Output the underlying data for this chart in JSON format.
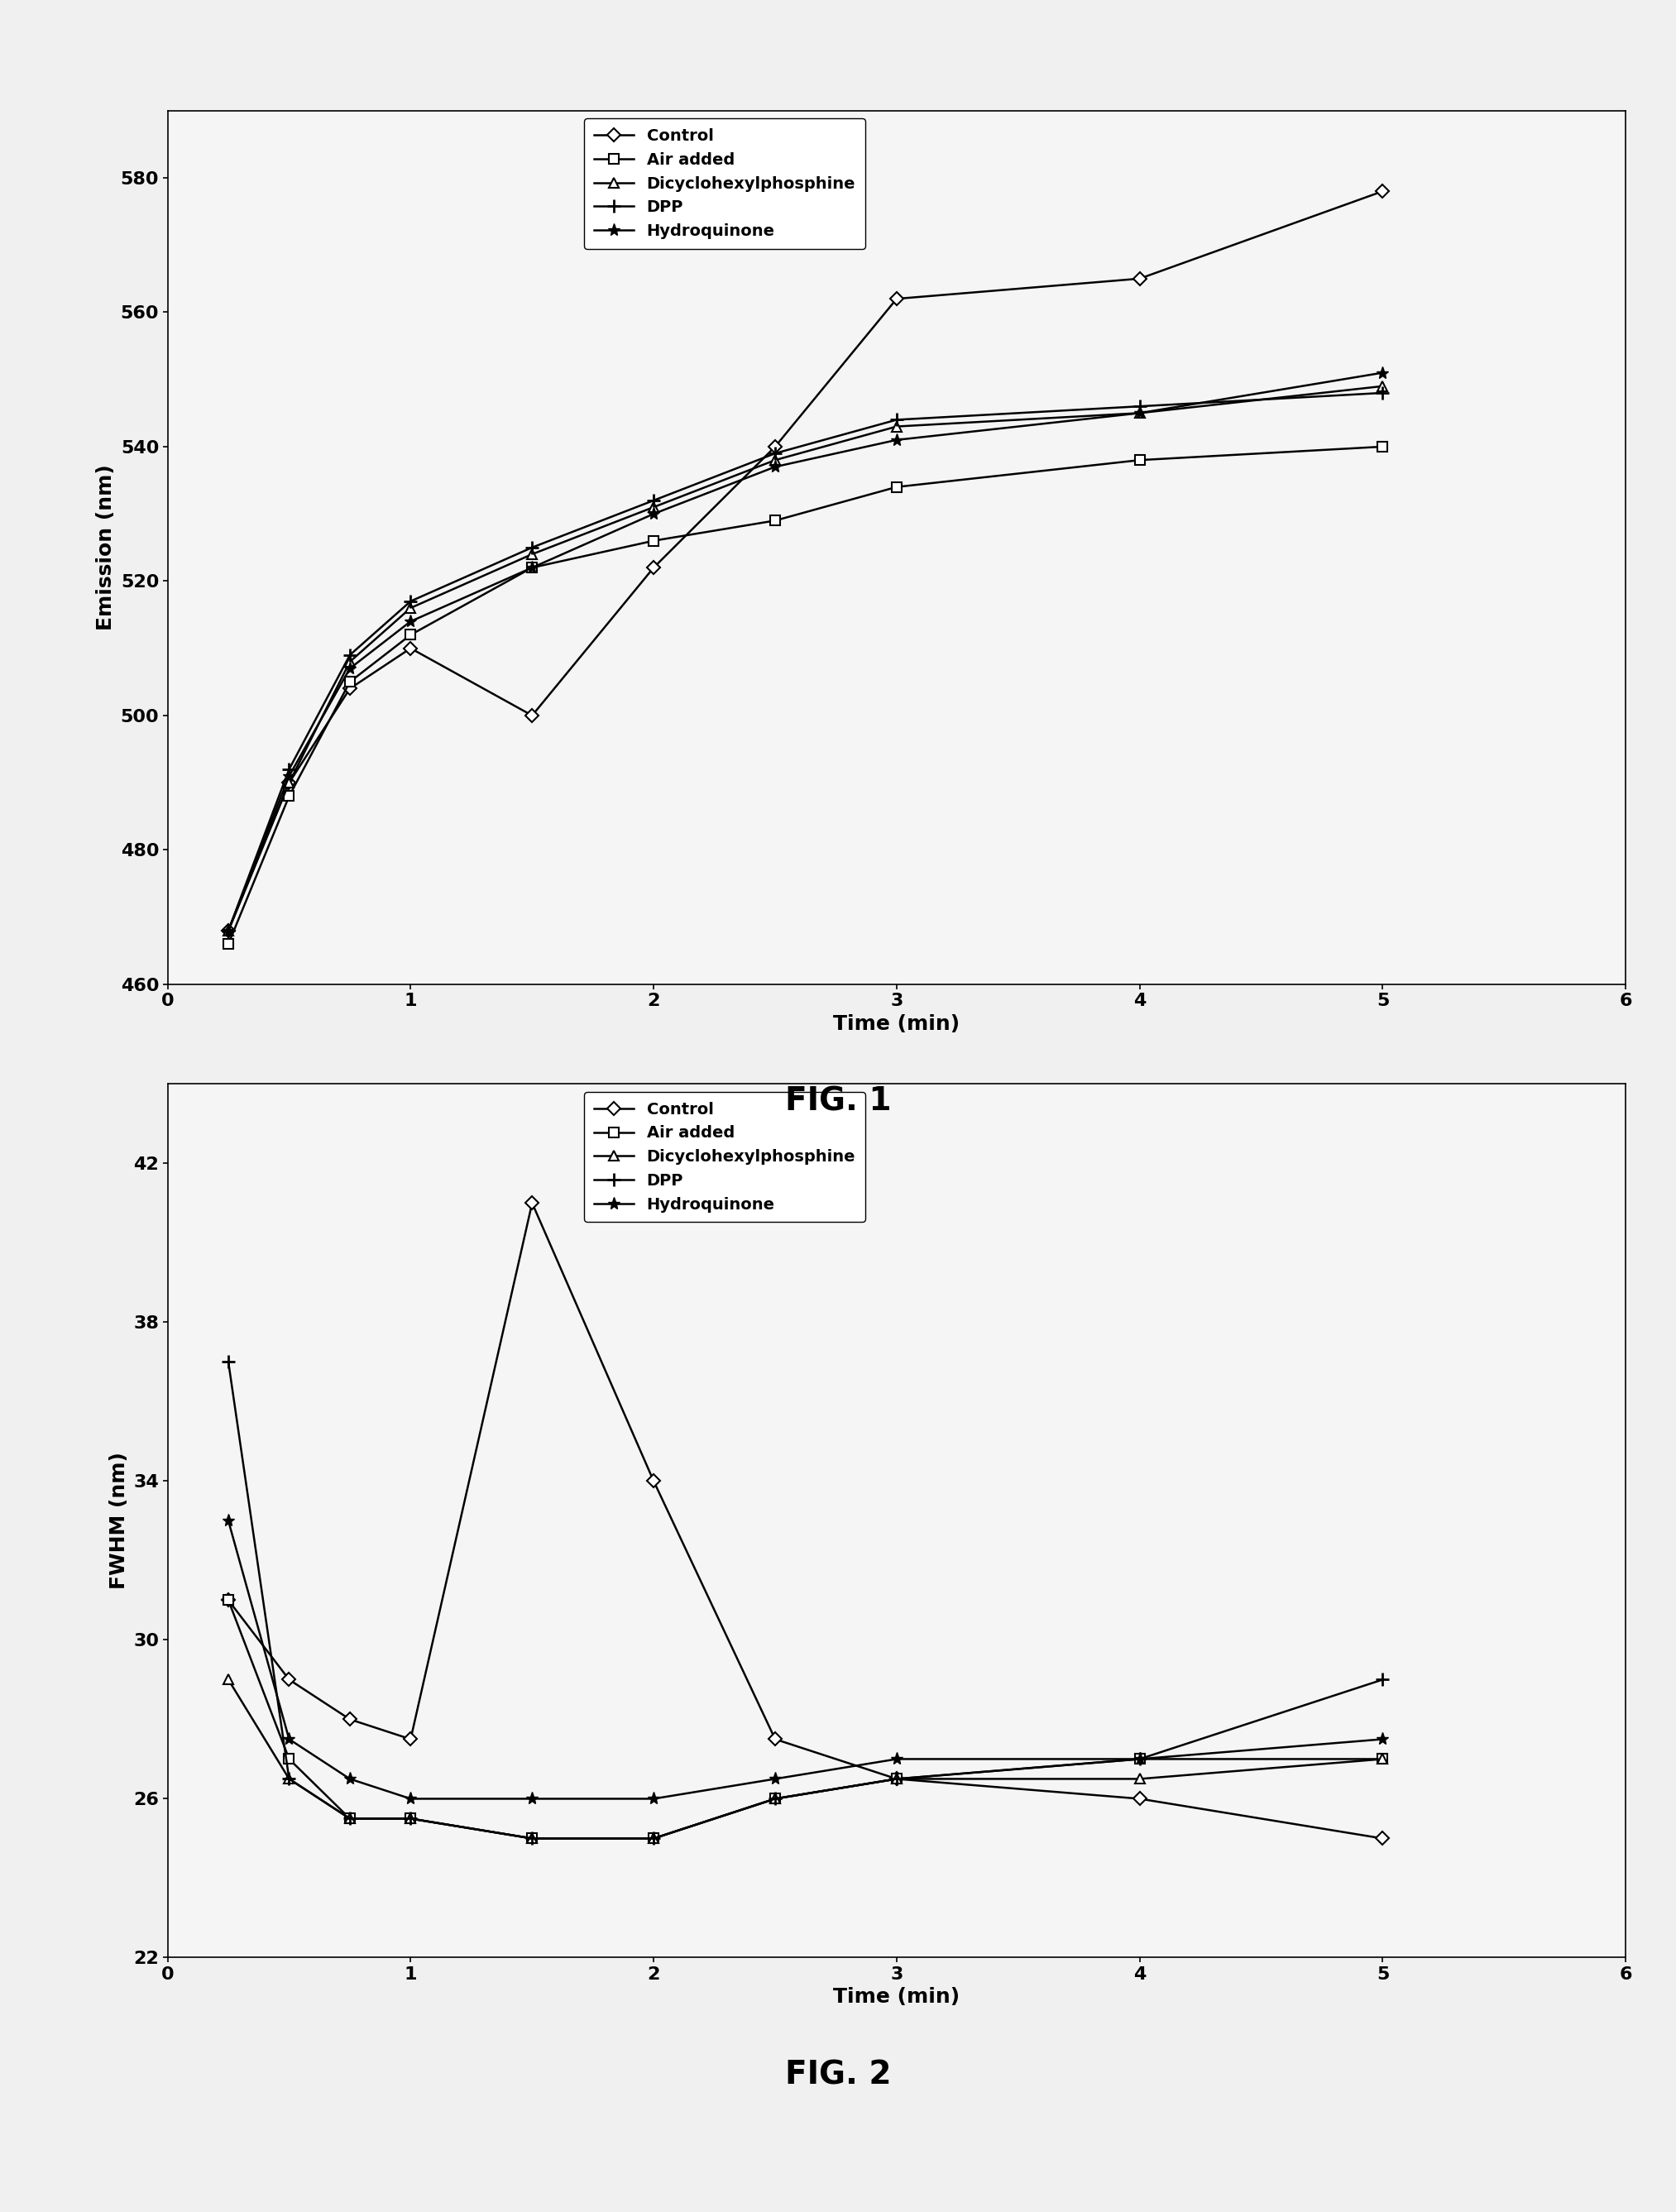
{
  "fig1": {
    "title": "FIG. 1",
    "xlabel": "Time (min)",
    "ylabel": "Emission (nm)",
    "xlim": [
      0,
      6
    ],
    "ylim": [
      460,
      590
    ],
    "yticks": [
      460,
      480,
      500,
      520,
      540,
      560,
      580
    ],
    "xticks": [
      0,
      1,
      2,
      3,
      4,
      5,
      6
    ],
    "series": {
      "Control": {
        "x": [
          0.25,
          0.5,
          0.75,
          1.0,
          1.5,
          2.0,
          2.5,
          3.0,
          4.0,
          5.0
        ],
        "y": [
          468,
          490,
          504,
          510,
          500,
          522,
          540,
          562,
          565,
          578
        ],
        "marker": "D",
        "markersize": 8
      },
      "Air added": {
        "x": [
          0.25,
          0.5,
          0.75,
          1.0,
          1.5,
          2.0,
          2.5,
          3.0,
          4.0,
          5.0
        ],
        "y": [
          466,
          488,
          505,
          512,
          522,
          526,
          529,
          534,
          538,
          540
        ],
        "marker": "s",
        "markersize": 8
      },
      "Dicyclohexylphosphine": {
        "x": [
          0.25,
          0.5,
          0.75,
          1.0,
          1.5,
          2.0,
          2.5,
          3.0,
          4.0,
          5.0
        ],
        "y": [
          468,
          490,
          508,
          516,
          524,
          531,
          538,
          543,
          545,
          549
        ],
        "marker": "^",
        "markersize": 8
      },
      "DPP": {
        "x": [
          0.25,
          0.5,
          0.75,
          1.0,
          1.5,
          2.0,
          2.5,
          3.0,
          4.0,
          5.0
        ],
        "y": [
          468,
          492,
          509,
          517,
          525,
          532,
          539,
          544,
          546,
          548
        ],
        "marker": "+",
        "markersize": 11
      },
      "Hydroquinone": {
        "x": [
          0.25,
          0.5,
          0.75,
          1.0,
          1.5,
          2.0,
          2.5,
          3.0,
          4.0,
          5.0
        ],
        "y": [
          468,
          491,
          507,
          514,
          522,
          530,
          537,
          541,
          545,
          551
        ],
        "marker": "*",
        "markersize": 11
      }
    }
  },
  "fig2": {
    "title": "FIG. 2",
    "xlabel": "Time (min)",
    "ylabel": "FWHM (nm)",
    "xlim": [
      0,
      6
    ],
    "ylim": [
      22,
      44
    ],
    "yticks": [
      22,
      26,
      30,
      34,
      38,
      42
    ],
    "xticks": [
      0,
      1,
      2,
      3,
      4,
      5,
      6
    ],
    "series": {
      "Control": {
        "x": [
          0.25,
          0.5,
          0.75,
          1.0,
          1.5,
          2.0,
          2.5,
          3.0,
          4.0,
          5.0
        ],
        "y": [
          31,
          29,
          28,
          27.5,
          41,
          34,
          27.5,
          26.5,
          26,
          25
        ],
        "marker": "D",
        "markersize": 8
      },
      "Air added": {
        "x": [
          0.25,
          0.5,
          0.75,
          1.0,
          1.5,
          2.0,
          2.5,
          3.0,
          4.0,
          5.0
        ],
        "y": [
          31,
          27,
          25.5,
          25.5,
          25,
          25,
          26,
          26.5,
          27,
          27
        ],
        "marker": "s",
        "markersize": 8
      },
      "Dicyclohexylphosphine": {
        "x": [
          0.25,
          0.5,
          0.75,
          1.0,
          1.5,
          2.0,
          2.5,
          3.0,
          4.0,
          5.0
        ],
        "y": [
          29,
          26.5,
          25.5,
          25.5,
          25,
          25,
          26,
          26.5,
          26.5,
          27
        ],
        "marker": "^",
        "markersize": 8
      },
      "DPP": {
        "x": [
          0.25,
          0.5,
          0.75,
          1.0,
          1.5,
          2.0,
          2.5,
          3.0,
          4.0,
          5.0
        ],
        "y": [
          37,
          26.5,
          25.5,
          25.5,
          25,
          25,
          26,
          26.5,
          27,
          29
        ],
        "marker": "+",
        "markersize": 11
      },
      "Hydroquinone": {
        "x": [
          0.25,
          0.5,
          0.75,
          1.0,
          1.5,
          2.0,
          2.5,
          3.0,
          4.0,
          5.0
        ],
        "y": [
          33,
          27.5,
          26.5,
          26,
          26,
          26,
          26.5,
          27,
          27,
          27.5
        ],
        "marker": "*",
        "markersize": 11
      }
    }
  },
  "line_color": "#000000",
  "legend_order": [
    "Control",
    "Air added",
    "Dicyclohexylphosphine",
    "DPP",
    "Hydroquinone"
  ],
  "background_color": "#f0f0f0",
  "plot_bg": "#f5f5f5",
  "fig_label_fontsize": 28,
  "axis_label_fontsize": 18,
  "tick_fontsize": 16,
  "legend_fontsize": 14,
  "linewidth": 1.8
}
